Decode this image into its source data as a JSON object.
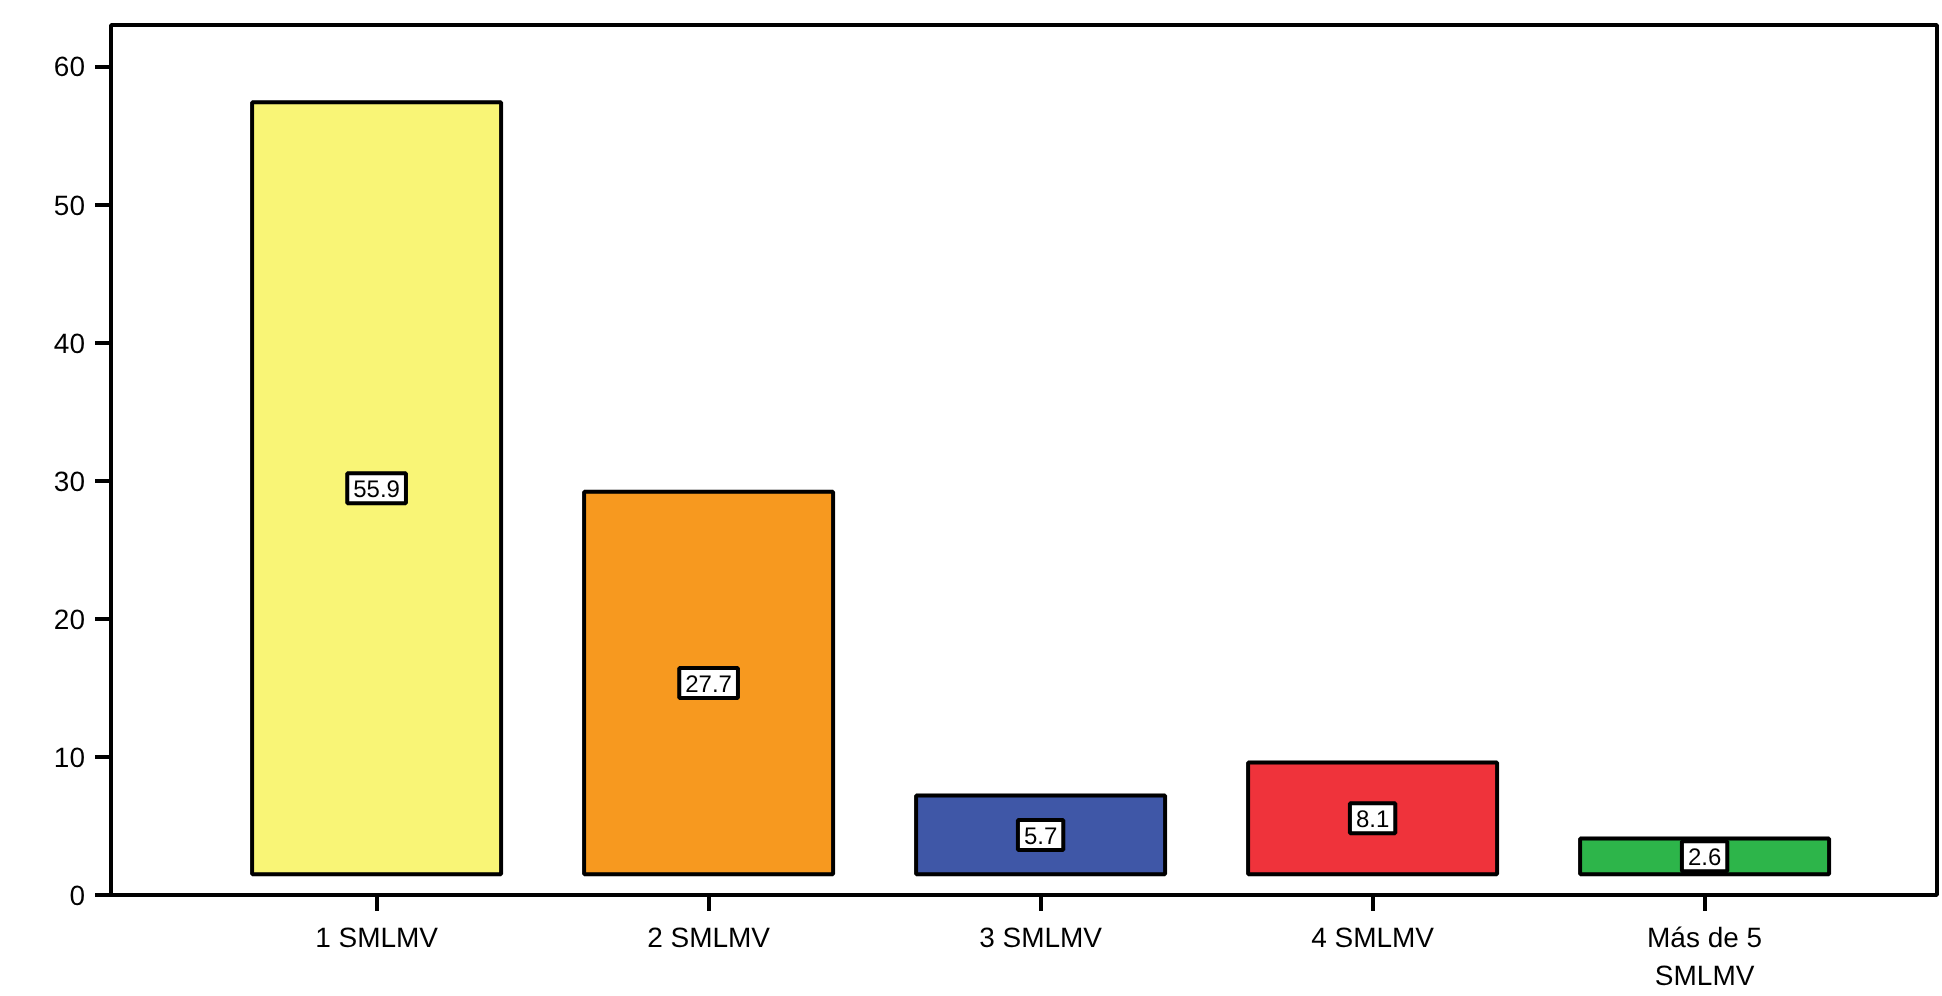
{
  "chart_data": {
    "type": "bar",
    "categories": [
      "1 SMLMV",
      "2 SMLMV",
      "3 SMLMV",
      "4 SMLMV",
      "Más de 5\nSMLMV"
    ],
    "values": [
      55.9,
      27.7,
      5.7,
      8.1,
      2.6
    ],
    "base": [
      1.5,
      1.5,
      1.5,
      1.5,
      1.5
    ],
    "colors": [
      "#f9f576",
      "#f7991f",
      "#3f57a7",
      "#ef333b",
      "#2db54a"
    ],
    "ylim": [
      0,
      63
    ],
    "yticks": [
      0,
      10,
      20,
      30,
      40,
      50,
      60
    ],
    "grid": false,
    "data_labels": true
  }
}
